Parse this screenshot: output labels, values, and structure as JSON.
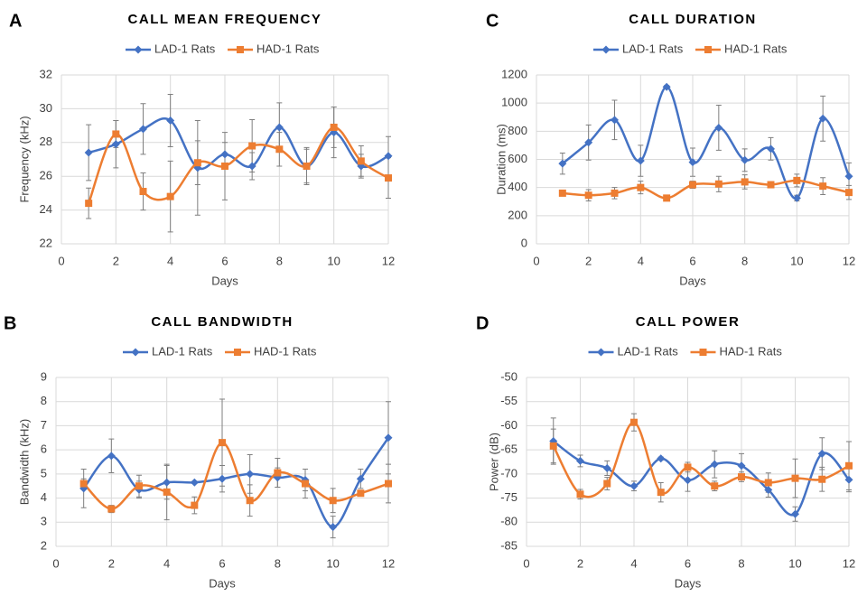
{
  "chart_data": [
    {
      "type": "line",
      "panel": "A",
      "title": "CALL MEAN FREQUENCY",
      "x_label": "Days",
      "y_label": "Frequency (kHz)",
      "x": [
        1,
        2,
        3,
        4,
        5,
        6,
        7,
        8,
        9,
        10,
        11,
        12
      ],
      "series": [
        {
          "name": "LAD-1 Rats",
          "color": "#4472c4",
          "marker": "diamond",
          "values": [
            27.4,
            27.9,
            28.8,
            29.3,
            26.5,
            27.3,
            26.6,
            28.9,
            26.6,
            28.6,
            26.6,
            27.2
          ],
          "errors": [
            1.65,
            1.4,
            1.5,
            1.55,
            2.8,
            0.7,
            0.8,
            1.45,
            1.1,
            1.5,
            0.7,
            1.15
          ]
        },
        {
          "name": "HAD-1 Rats",
          "color": "#ed7d31",
          "marker": "square",
          "values": [
            24.4,
            28.5,
            25.1,
            24.8,
            26.8,
            26.6,
            27.8,
            27.6,
            26.6,
            28.9,
            26.9,
            25.9
          ],
          "errors": [
            0.9,
            0.8,
            1.1,
            2.1,
            1.3,
            2.0,
            1.55,
            1.0,
            1.0,
            1.2,
            0.9,
            1.2
          ]
        }
      ],
      "xlim": [
        0,
        12
      ],
      "xticks": [
        0,
        2,
        4,
        6,
        8,
        10,
        12
      ],
      "ylim": [
        22,
        32
      ],
      "yticks": [
        22,
        24,
        26,
        28,
        30,
        32
      ],
      "grid": true,
      "smooth": true
    },
    {
      "type": "line",
      "panel": "B",
      "title": "CALL BANDWIDTH",
      "x_label": "Days",
      "y_label": "Bandwidth (kHz)",
      "x": [
        1,
        2,
        3,
        4,
        5,
        6,
        7,
        8,
        9,
        10,
        11,
        12
      ],
      "series": [
        {
          "name": "LAD-1 Rats",
          "color": "#4472c4",
          "marker": "diamond",
          "values": [
            4.4,
            5.75,
            4.35,
            4.65,
            4.65,
            4.8,
            5.0,
            4.85,
            4.75,
            2.8,
            4.8,
            6.5
          ],
          "errors": [
            0.8,
            0.7,
            0.35,
            0.7,
            0.05,
            0.55,
            0.8,
            0.4,
            0.45,
            0.45,
            0.4,
            1.5
          ]
        },
        {
          "name": "HAD-1 Rats",
          "color": "#ed7d31",
          "marker": "square",
          "values": [
            4.6,
            3.55,
            4.5,
            4.25,
            3.7,
            6.3,
            3.9,
            5.05,
            4.6,
            3.9,
            4.2,
            4.6
          ],
          "errors": [
            0.2,
            0.15,
            0.45,
            1.15,
            0.35,
            1.8,
            0.65,
            0.6,
            0.6,
            0.5,
            0.1,
            0.8
          ]
        }
      ],
      "xlim": [
        0,
        12
      ],
      "xticks": [
        0,
        2,
        4,
        6,
        8,
        10,
        12
      ],
      "ylim": [
        2,
        9
      ],
      "yticks": [
        2,
        3,
        4,
        5,
        6,
        7,
        8,
        9
      ],
      "grid": true,
      "smooth": true
    },
    {
      "type": "line",
      "panel": "C",
      "title": "CALL DURATION",
      "x_label": "Days",
      "y_label": "Duration (ms)",
      "x": [
        1,
        2,
        3,
        4,
        5,
        6,
        7,
        8,
        9,
        10,
        11,
        12
      ],
      "series": [
        {
          "name": "LAD-1 Rats",
          "color": "#4472c4",
          "marker": "diamond",
          "values": [
            570,
            720,
            880,
            590,
            1115,
            580,
            825,
            595,
            675,
            325,
            890,
            480
          ],
          "errors": [
            75,
            125,
            140,
            110,
            10,
            100,
            160,
            80,
            80,
            20,
            160,
            95
          ]
        },
        {
          "name": "HAD-1 Rats",
          "color": "#ed7d31",
          "marker": "square",
          "values": [
            360,
            345,
            360,
            400,
            325,
            420,
            425,
            440,
            420,
            450,
            410,
            365
          ],
          "errors": [
            15,
            40,
            40,
            45,
            15,
            25,
            55,
            50,
            20,
            45,
            60,
            50
          ]
        }
      ],
      "xlim": [
        0,
        12
      ],
      "xticks": [
        0,
        2,
        4,
        6,
        8,
        10,
        12
      ],
      "ylim": [
        0,
        1200
      ],
      "yticks": [
        0,
        200,
        400,
        600,
        800,
        1000,
        1200
      ],
      "grid": true,
      "smooth": true
    },
    {
      "type": "line",
      "panel": "D",
      "title": "CALL POWER",
      "x_label": "Days",
      "y_label": "Power (dB)",
      "x": [
        1,
        2,
        3,
        4,
        5,
        6,
        7,
        8,
        9,
        10,
        11,
        12
      ],
      "series": [
        {
          "name": "LAD-1 Rats",
          "color": "#4472c4",
          "marker": "diamond",
          "values": [
            -63.2,
            -67.3,
            -68.8,
            -72.5,
            -66.8,
            -71.3,
            -68.0,
            -68.3,
            -73.3,
            -78.3,
            -65.8,
            -71.2
          ],
          "errors": [
            4.8,
            1.2,
            1.5,
            1.0,
            0.3,
            2.3,
            2.8,
            2.5,
            1.5,
            1.5,
            3.3,
            2.5
          ]
        },
        {
          "name": "HAD-1 Rats",
          "color": "#ed7d31",
          "marker": "square",
          "values": [
            -64.2,
            -74.2,
            -72.0,
            -59.3,
            -73.8,
            -68.6,
            -72.5,
            -70.6,
            -71.8,
            -70.9,
            -71.1,
            -68.3
          ],
          "errors": [
            3.5,
            1.0,
            1.3,
            1.8,
            2.0,
            1.0,
            1.0,
            1.0,
            2.0,
            4.0,
            2.5,
            5.0
          ]
        }
      ],
      "xlim": [
        0,
        12
      ],
      "xticks": [
        0,
        2,
        4,
        6,
        8,
        10,
        12
      ],
      "ylim": [
        -85,
        -50
      ],
      "yticks": [
        -85,
        -80,
        -75,
        -70,
        -65,
        -60,
        -55,
        -50
      ],
      "grid": true,
      "smooth": true
    }
  ]
}
